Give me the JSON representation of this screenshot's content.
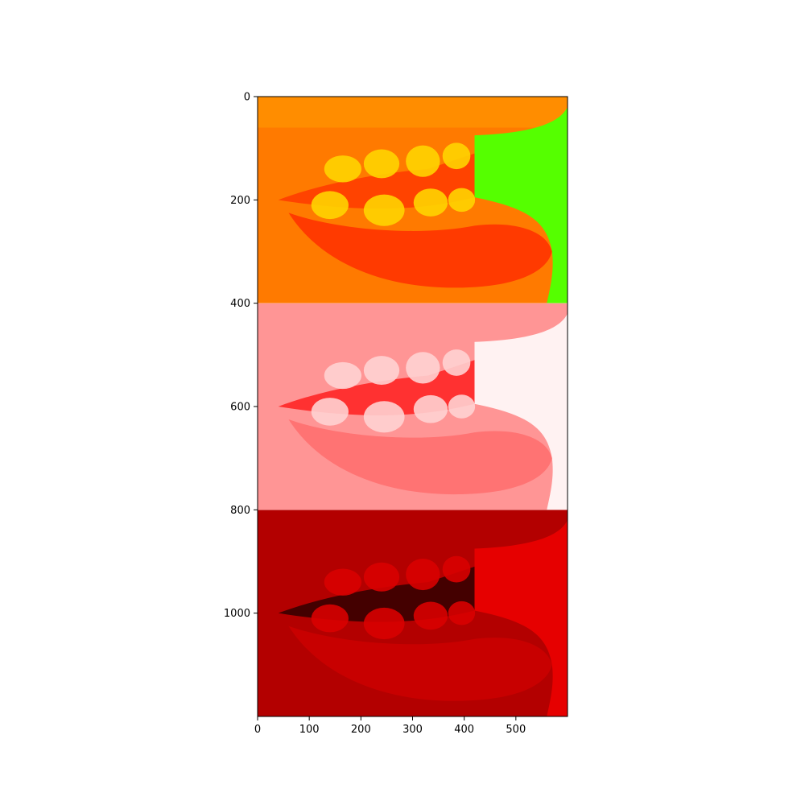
{
  "chart_data": {
    "type": "image",
    "title": "",
    "xlabel": "",
    "ylabel": "",
    "xlim": [
      0,
      600
    ],
    "ylim": [
      1200,
      0
    ],
    "x_ticks": [
      0,
      100,
      200,
      300,
      400,
      500
    ],
    "y_ticks": [
      0,
      200,
      400,
      600,
      800,
      1000
    ],
    "grid": false,
    "panels": [
      {
        "name": "",
        "y_range": [
          0,
          400
        ],
        "colormap": "hsv",
        "colors": {
          "background": "#ff7a00",
          "lips": "#ff3a00",
          "teeth": "#ffd400",
          "backdrop": "#55ff00",
          "upper_edge": "#ff9a00"
        }
      },
      {
        "name": "",
        "y_range": [
          400,
          800
        ],
        "colormap": "light-red",
        "colors": {
          "background": "#ff9595",
          "lips": "#ff7373",
          "teeth": "#ffd2d2",
          "backdrop": "#fff2f2",
          "gap": "#ff2020"
        }
      },
      {
        "name": "",
        "y_range": [
          800,
          1200
        ],
        "colormap": "dark-red",
        "colors": {
          "background": "#b30000",
          "lips": "#c80000",
          "teeth": "#d80000",
          "backdrop": "#e60000",
          "gap": "#300000"
        }
      }
    ]
  }
}
